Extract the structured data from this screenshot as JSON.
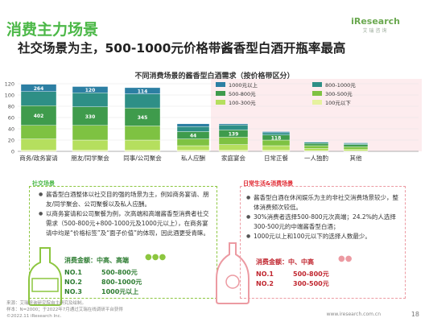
{
  "header": {
    "section_title": "消费主力场景",
    "headline": "社交场景为主，500-1000元价格带酱香型白酒开瓶率最高",
    "logo_text": "iResearch",
    "logo_subtext": "艾瑞咨询"
  },
  "chart_data": {
    "type": "bar",
    "stacked": true,
    "title": "不同消费场景的酱香型白酒需求（按价格带区分）",
    "ylim": [
      0,
      120
    ],
    "y_ticks": [
      0,
      20,
      40,
      60,
      80,
      100,
      120
    ],
    "categories": [
      "商务/政务宴请",
      "朋友/同学聚会",
      "同事/公司聚会",
      "私人应酬",
      "家庭宴会",
      "日常正餐",
      "一人独酌",
      "其他"
    ],
    "series": [
      {
        "name": "100元以下",
        "color": "#e6f29e",
        "values": [
          2,
          2,
          2,
          2,
          2,
          2,
          1,
          1
        ]
      },
      {
        "name": "100-300元",
        "color": "#b5df5e",
        "values": [
          20,
          18,
          18,
          8,
          10,
          8,
          4,
          3
        ]
      },
      {
        "name": "300-500元",
        "color": "#7ec242",
        "values": [
          24,
          26,
          25,
          12,
          13,
          10,
          5,
          4
        ]
      },
      {
        "name": "500-800元",
        "color": "#3f9b4c",
        "values": [
          35,
          33,
          32,
          13,
          13,
          9,
          4,
          4
        ]
      },
      {
        "name": "800-1000元",
        "color": "#2e8f86",
        "values": [
          25,
          25,
          25,
          9,
          9,
          4,
          2,
          2
        ]
      },
      {
        "name": "1000元以上",
        "color": "#2c7fa3",
        "values": [
          13,
          11,
          11,
          5,
          2,
          2,
          1,
          1
        ]
      }
    ],
    "bar_labels": [
      {
        "category": "商务/政务宴请",
        "series": "500-800元",
        "text": "402"
      },
      {
        "category": "商务/政务宴请",
        "series": "1000元以上",
        "text": "264"
      },
      {
        "category": "朋友/同学聚会",
        "series": "1000元以上",
        "text": "120"
      },
      {
        "category": "朋友/同学聚会",
        "series": "500-800元",
        "text": "330"
      },
      {
        "category": "同事/公司聚会",
        "series": "1000元以上",
        "text": "114"
      },
      {
        "category": "同事/公司聚会",
        "series": "500-800元",
        "text": "345"
      },
      {
        "category": "私人应酬",
        "series": "500-800元",
        "text": "44"
      },
      {
        "category": "家庭宴会",
        "series": "500-800元",
        "text": "139"
      },
      {
        "category": "日常正餐",
        "series": "500-800元",
        "text": "118"
      }
    ]
  },
  "groups": {
    "social_label": "社交场景",
    "daily_label": "日常生活&消费场景"
  },
  "notes_left": [
    "酱香型白酒整体以社交目的强的场景为主，例如商务宴请、朋友/同学聚会、公司聚餐以及私人应酬。",
    "以商务宴请和公司聚餐为例，次高端和高端酱香型消费者社交需求（500-800元+800-1000元及1000元以上），在商务宴请中均是“价格标签”及“面子价值”的体现，因此酒更受青睐。"
  ],
  "notes_right": [
    "酱香型白酒在休闲娱乐为主的非社交消费场景较少，整体消费频次较低。",
    "30%消费者选择500-800元次高端；24.2%的人选择300-500元的中端酱香型白酒；",
    "1000元以上和100元以下的选择人数最少。"
  ],
  "price_left": {
    "label": "消费金额：中高、高端",
    "rows": [
      {
        "tier": "NO.1",
        "range": "500-800元"
      },
      {
        "tier": "NO.2",
        "range": "800-1000元"
      },
      {
        "tier": "NO.3",
        "range": "1000元以上"
      }
    ]
  },
  "price_right": {
    "label": "消费金额：中、中高",
    "rows": [
      {
        "tier": "NO.1",
        "range": "500-800元"
      },
      {
        "tier": "NO.2",
        "range": "300-500元"
      }
    ]
  },
  "footer": {
    "source": "来源：艾瑞咨询研究院自主研究及绘制。",
    "sample": "样本：N=2000；于2022年7月通过艾瑞在线调研平台获得",
    "copyright": "©2022.11 iResearch Inc.",
    "website": "www.iresearch.com.cn",
    "page": "18"
  },
  "colors": {
    "brand_green": "#4cb848",
    "accent_red": "#e0262f"
  }
}
